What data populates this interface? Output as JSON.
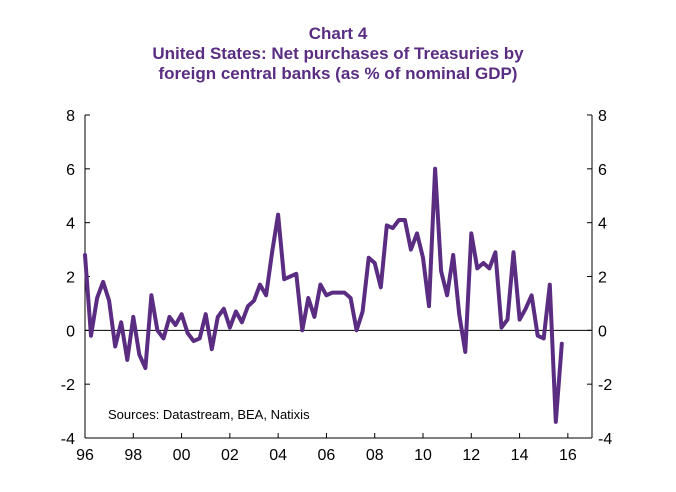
{
  "chart_data": {
    "type": "line",
    "title": "Chart 4",
    "subtitle_line1": "United States: Net purchases of Treasuries by",
    "subtitle_line2": "foreign central banks (as % of nominal GDP)",
    "xlabel": "",
    "ylabel": "",
    "ylim": [
      -4,
      8
    ],
    "xlim": [
      1996.0,
      2017.0
    ],
    "yticks": [
      8,
      6,
      4,
      2,
      0,
      -2,
      -4
    ],
    "ytick_labels": [
      "8",
      "6",
      "4",
      "2",
      "0",
      "-2",
      "-4"
    ],
    "xtick_labels": [
      "96",
      "98",
      "00",
      "02",
      "04",
      "06",
      "08",
      "10",
      "12",
      "14",
      "16"
    ],
    "xtick_years": [
      1996,
      1998,
      2000,
      2002,
      2004,
      2006,
      2008,
      2010,
      2012,
      2014,
      2016
    ],
    "grid": false,
    "source_note": "Sources: Datastream, BEA, Natixis",
    "line_color": "#5a2d82",
    "series": [
      {
        "name": "Net purchases of Treasuries by foreign central banks (% of nominal GDP)",
        "x": [
          1996.0,
          1996.25,
          1996.5,
          1996.75,
          1997.0,
          1997.25,
          1997.5,
          1997.75,
          1998.0,
          1998.25,
          1998.5,
          1998.75,
          1999.0,
          1999.25,
          1999.5,
          1999.75,
          2000.0,
          2000.25,
          2000.5,
          2000.75,
          2001.0,
          2001.25,
          2001.5,
          2001.75,
          2002.0,
          2002.25,
          2002.5,
          2002.75,
          2003.0,
          2003.25,
          2003.5,
          2003.75,
          2004.0,
          2004.25,
          2004.5,
          2004.75,
          2005.0,
          2005.25,
          2005.5,
          2005.75,
          2006.0,
          2006.25,
          2006.5,
          2006.75,
          2007.0,
          2007.25,
          2007.5,
          2007.75,
          2008.0,
          2008.25,
          2008.5,
          2008.75,
          2009.0,
          2009.25,
          2009.5,
          2009.75,
          2010.0,
          2010.25,
          2010.5,
          2010.75,
          2011.0,
          2011.25,
          2011.5,
          2011.75,
          2012.0,
          2012.25,
          2012.5,
          2012.75,
          2013.0,
          2013.25,
          2013.5,
          2013.75,
          2014.0,
          2014.25,
          2014.5,
          2014.75,
          2015.0,
          2015.25,
          2015.5,
          2015.75
        ],
        "values": [
          2.8,
          -0.2,
          1.2,
          1.8,
          1.1,
          -0.6,
          0.3,
          -1.1,
          0.5,
          -0.9,
          -1.4,
          1.3,
          0.0,
          -0.3,
          0.5,
          0.2,
          0.6,
          -0.1,
          -0.4,
          -0.3,
          0.6,
          -0.7,
          0.5,
          0.8,
          0.1,
          0.7,
          0.3,
          0.9,
          1.1,
          1.7,
          1.3,
          2.9,
          4.3,
          1.9,
          2.0,
          2.1,
          0.0,
          1.2,
          0.5,
          1.7,
          1.3,
          1.4,
          1.4,
          1.4,
          1.2,
          0.0,
          0.7,
          2.7,
          2.5,
          1.6,
          3.9,
          3.8,
          4.1,
          4.1,
          3.0,
          3.6,
          2.7,
          0.9,
          6.0,
          2.2,
          1.3,
          2.8,
          0.6,
          -0.8,
          3.6,
          2.3,
          2.5,
          2.3,
          2.9,
          0.1,
          0.4,
          2.9,
          0.4,
          0.8,
          1.3,
          -0.2,
          -0.3,
          1.7,
          -3.4,
          -0.5
        ]
      }
    ]
  }
}
